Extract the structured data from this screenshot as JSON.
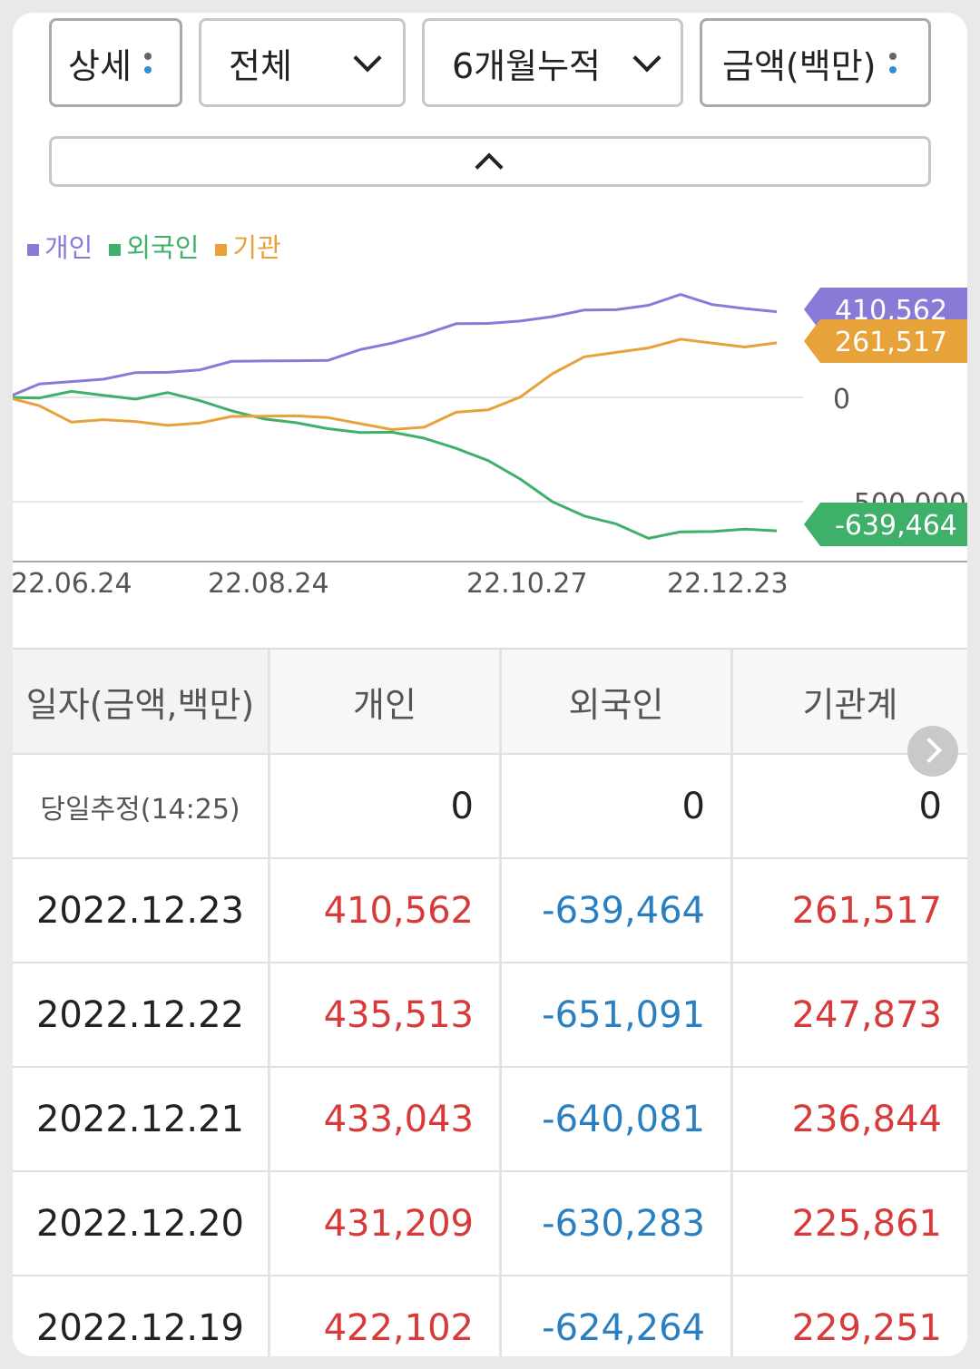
{
  "filters": {
    "detail": "상세",
    "scope": "전체",
    "period": "6개월누적",
    "unit": "금액(백만)"
  },
  "legend": [
    {
      "label": "개인",
      "color": "#8a7ad8"
    },
    {
      "label": "외국인",
      "color": "#3fb06a"
    },
    {
      "label": "기관",
      "color": "#e8a23a"
    }
  ],
  "chart_data": {
    "type": "line",
    "x_ticks": [
      "22.06.24",
      "22.08.24",
      "22.10.27",
      "22.12.23"
    ],
    "y_ticks": [
      "0",
      "-500,000"
    ],
    "series": [
      {
        "name": "개인",
        "color": "#8a7ad8",
        "end_label": "410,562",
        "values": [
          0,
          60000,
          80000,
          100000,
          110000,
          120000,
          140000,
          160000,
          170000,
          180000,
          190000,
          220000,
          260000,
          310000,
          340000,
          350000,
          370000,
          400000,
          410000,
          420000,
          450000,
          480000,
          440000,
          430000,
          410562
        ]
      },
      {
        "name": "외국인",
        "color": "#3fb06a",
        "end_label": "-639,464",
        "values": [
          0,
          10000,
          20000,
          10000,
          0,
          10000,
          -20000,
          -60000,
          -90000,
          -130000,
          -150000,
          -160000,
          -180000,
          -200000,
          -240000,
          -290000,
          -400000,
          -500000,
          -560000,
          -620000,
          -680000,
          -640000,
          -630000,
          -640000,
          -639464
        ]
      },
      {
        "name": "기관",
        "color": "#e8a23a",
        "end_label": "261,517",
        "values": [
          0,
          -40000,
          -110000,
          -120000,
          -120000,
          -130000,
          -110000,
          -100000,
          -90000,
          -80000,
          -110000,
          -130000,
          -150000,
          -130000,
          -80000,
          -60000,
          10000,
          100000,
          190000,
          220000,
          250000,
          270000,
          260000,
          250000,
          261517
        ]
      }
    ]
  },
  "table": {
    "headers": [
      "일자(금액,백만)",
      "개인",
      "외국인",
      "기관계"
    ],
    "live": {
      "label": "당일추정(14:25)",
      "values": [
        "0",
        "0",
        "0"
      ]
    },
    "rows": [
      {
        "date": "2022.12.23",
        "ind": "410,562",
        "for": "-639,464",
        "inst": "261,517"
      },
      {
        "date": "2022.12.22",
        "ind": "435,513",
        "for": "-651,091",
        "inst": "247,873"
      },
      {
        "date": "2022.12.21",
        "ind": "433,043",
        "for": "-640,081",
        "inst": "236,844"
      },
      {
        "date": "2022.12.20",
        "ind": "431,209",
        "for": "-630,283",
        "inst": "225,861"
      },
      {
        "date": "2022.12.19",
        "ind": "422,102",
        "for": "-624,264",
        "inst": "229,251"
      }
    ]
  }
}
